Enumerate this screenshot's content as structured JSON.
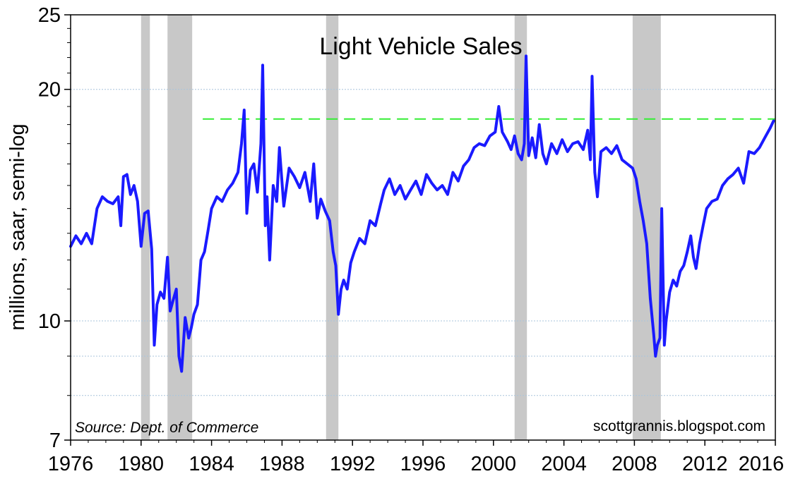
{
  "chart_data": {
    "type": "line",
    "title": "Light Vehicle Sales",
    "xlabel": "",
    "ylabel": "millions, saar, semi-log",
    "y_scale": "log",
    "xlim": [
      1976,
      2016
    ],
    "ylim": [
      7,
      25
    ],
    "x_ticks": [
      1976,
      1980,
      1984,
      1988,
      1992,
      1996,
      2000,
      2004,
      2008,
      2012,
      2016
    ],
    "x_tick_labels": [
      "1976",
      "1980",
      "1984",
      "1988",
      "1992",
      "1996",
      "2000",
      "2004",
      "2008",
      "2012",
      "2016"
    ],
    "y_ticks": [
      7,
      10,
      20,
      25
    ],
    "y_tick_labels": [
      "7",
      "10",
      "20",
      "25"
    ],
    "y_gridlines": [
      8,
      9,
      10,
      20
    ],
    "source": "Source:  Dept. of Commerce",
    "credit": "scottgrannis.blogspot.com",
    "recessions": [
      [
        1980.0,
        1980.5
      ],
      [
        1981.5,
        1982.9
      ],
      [
        1990.5,
        1991.2
      ],
      [
        2001.2,
        2001.9
      ],
      [
        2007.9,
        2009.5
      ]
    ],
    "reference_line": {
      "y": 18.3,
      "x_start": 1983.5,
      "x_end": 2016,
      "style": "dashed",
      "color": "#33ee33"
    },
    "series": [
      {
        "name": "Light Vehicle Sales",
        "color": "#1a1aff",
        "points": [
          [
            1976.0,
            12.5
          ],
          [
            1976.3,
            12.9
          ],
          [
            1976.6,
            12.6
          ],
          [
            1976.9,
            13.0
          ],
          [
            1977.2,
            12.6
          ],
          [
            1977.5,
            14.0
          ],
          [
            1977.8,
            14.5
          ],
          [
            1978.1,
            14.3
          ],
          [
            1978.4,
            14.2
          ],
          [
            1978.7,
            14.5
          ],
          [
            1978.85,
            13.3
          ],
          [
            1979.0,
            15.4
          ],
          [
            1979.2,
            15.5
          ],
          [
            1979.4,
            14.6
          ],
          [
            1979.6,
            15.0
          ],
          [
            1979.8,
            14.3
          ],
          [
            1980.0,
            12.5
          ],
          [
            1980.2,
            13.8
          ],
          [
            1980.4,
            13.9
          ],
          [
            1980.6,
            12.4
          ],
          [
            1980.75,
            9.3
          ],
          [
            1980.9,
            10.5
          ],
          [
            1981.1,
            10.9
          ],
          [
            1981.3,
            10.7
          ],
          [
            1981.5,
            12.1
          ],
          [
            1981.65,
            10.3
          ],
          [
            1981.8,
            10.6
          ],
          [
            1982.0,
            11.0
          ],
          [
            1982.15,
            9.0
          ],
          [
            1982.3,
            8.6
          ],
          [
            1982.5,
            10.1
          ],
          [
            1982.7,
            9.5
          ],
          [
            1982.85,
            9.8
          ],
          [
            1983.0,
            10.2
          ],
          [
            1983.2,
            10.5
          ],
          [
            1983.4,
            12.0
          ],
          [
            1983.6,
            12.3
          ],
          [
            1983.8,
            13.1
          ],
          [
            1984.0,
            14.0
          ],
          [
            1984.3,
            14.5
          ],
          [
            1984.6,
            14.3
          ],
          [
            1984.9,
            14.8
          ],
          [
            1985.2,
            15.1
          ],
          [
            1985.5,
            15.6
          ],
          [
            1985.7,
            17.0
          ],
          [
            1985.85,
            18.8
          ],
          [
            1986.0,
            13.8
          ],
          [
            1986.2,
            15.7
          ],
          [
            1986.4,
            16.0
          ],
          [
            1986.6,
            14.7
          ],
          [
            1986.8,
            17.0
          ],
          [
            1986.9,
            21.5
          ],
          [
            1987.05,
            13.3
          ],
          [
            1987.15,
            14.5
          ],
          [
            1987.3,
            12.0
          ],
          [
            1987.5,
            15.0
          ],
          [
            1987.7,
            14.3
          ],
          [
            1987.85,
            16.8
          ],
          [
            1988.1,
            14.1
          ],
          [
            1988.4,
            15.8
          ],
          [
            1988.7,
            15.4
          ],
          [
            1989.0,
            14.9
          ],
          [
            1989.3,
            15.6
          ],
          [
            1989.6,
            14.3
          ],
          [
            1989.8,
            16.0
          ],
          [
            1990.0,
            13.6
          ],
          [
            1990.2,
            14.4
          ],
          [
            1990.45,
            13.9
          ],
          [
            1990.7,
            13.5
          ],
          [
            1990.9,
            12.3
          ],
          [
            1991.05,
            11.8
          ],
          [
            1991.2,
            10.2
          ],
          [
            1991.35,
            11.0
          ],
          [
            1991.5,
            11.3
          ],
          [
            1991.7,
            11.0
          ],
          [
            1991.9,
            11.9
          ],
          [
            1992.1,
            12.3
          ],
          [
            1992.4,
            12.8
          ],
          [
            1992.7,
            12.6
          ],
          [
            1993.0,
            13.5
          ],
          [
            1993.3,
            13.3
          ],
          [
            1993.6,
            14.2
          ],
          [
            1993.8,
            14.8
          ],
          [
            1994.1,
            15.3
          ],
          [
            1994.4,
            14.6
          ],
          [
            1994.7,
            15.0
          ],
          [
            1995.0,
            14.4
          ],
          [
            1995.3,
            14.8
          ],
          [
            1995.6,
            15.2
          ],
          [
            1995.9,
            14.6
          ],
          [
            1996.2,
            15.5
          ],
          [
            1996.5,
            15.1
          ],
          [
            1996.8,
            14.8
          ],
          [
            1997.1,
            15.0
          ],
          [
            1997.4,
            14.6
          ],
          [
            1997.7,
            15.6
          ],
          [
            1998.0,
            15.2
          ],
          [
            1998.3,
            15.9
          ],
          [
            1998.6,
            16.2
          ],
          [
            1998.9,
            16.8
          ],
          [
            1999.2,
            17.0
          ],
          [
            1999.5,
            16.9
          ],
          [
            1999.8,
            17.4
          ],
          [
            2000.1,
            17.6
          ],
          [
            2000.3,
            19.0
          ],
          [
            2000.5,
            17.6
          ],
          [
            2000.8,
            17.1
          ],
          [
            2001.0,
            16.7
          ],
          [
            2001.2,
            17.4
          ],
          [
            2001.4,
            16.5
          ],
          [
            2001.6,
            16.2
          ],
          [
            2001.75,
            17.0
          ],
          [
            2001.85,
            22.1
          ],
          [
            2002.0,
            16.4
          ],
          [
            2002.2,
            17.3
          ],
          [
            2002.4,
            16.3
          ],
          [
            2002.6,
            18.0
          ],
          [
            2002.8,
            16.5
          ],
          [
            2003.0,
            16.0
          ],
          [
            2003.3,
            17.0
          ],
          [
            2003.6,
            16.5
          ],
          [
            2003.9,
            17.2
          ],
          [
            2004.2,
            16.6
          ],
          [
            2004.5,
            17.0
          ],
          [
            2004.8,
            17.1
          ],
          [
            2005.1,
            16.7
          ],
          [
            2005.35,
            17.7
          ],
          [
            2005.5,
            16.2
          ],
          [
            2005.6,
            20.8
          ],
          [
            2005.75,
            15.6
          ],
          [
            2005.9,
            14.5
          ],
          [
            2006.1,
            16.6
          ],
          [
            2006.4,
            16.8
          ],
          [
            2006.7,
            16.5
          ],
          [
            2007.0,
            16.9
          ],
          [
            2007.3,
            16.2
          ],
          [
            2007.6,
            16.0
          ],
          [
            2007.9,
            15.8
          ],
          [
            2008.1,
            15.3
          ],
          [
            2008.3,
            14.3
          ],
          [
            2008.5,
            13.5
          ],
          [
            2008.7,
            12.6
          ],
          [
            2008.9,
            10.7
          ],
          [
            2009.1,
            9.6
          ],
          [
            2009.2,
            9.0
          ],
          [
            2009.3,
            9.3
          ],
          [
            2009.45,
            9.5
          ],
          [
            2009.55,
            14.0
          ],
          [
            2009.7,
            9.3
          ],
          [
            2009.8,
            10.0
          ],
          [
            2010.0,
            10.9
          ],
          [
            2010.2,
            11.3
          ],
          [
            2010.4,
            11.1
          ],
          [
            2010.6,
            11.6
          ],
          [
            2010.8,
            11.8
          ],
          [
            2011.0,
            12.3
          ],
          [
            2011.2,
            12.9
          ],
          [
            2011.35,
            12.1
          ],
          [
            2011.5,
            11.7
          ],
          [
            2011.7,
            12.6
          ],
          [
            2011.9,
            13.3
          ],
          [
            2012.1,
            14.0
          ],
          [
            2012.4,
            14.3
          ],
          [
            2012.7,
            14.4
          ],
          [
            2013.0,
            15.0
          ],
          [
            2013.3,
            15.3
          ],
          [
            2013.6,
            15.5
          ],
          [
            2013.9,
            15.8
          ],
          [
            2014.2,
            15.1
          ],
          [
            2014.5,
            16.6
          ],
          [
            2014.8,
            16.5
          ],
          [
            2015.1,
            16.8
          ],
          [
            2015.4,
            17.3
          ],
          [
            2015.7,
            17.8
          ],
          [
            2015.9,
            18.2
          ]
        ]
      }
    ]
  }
}
